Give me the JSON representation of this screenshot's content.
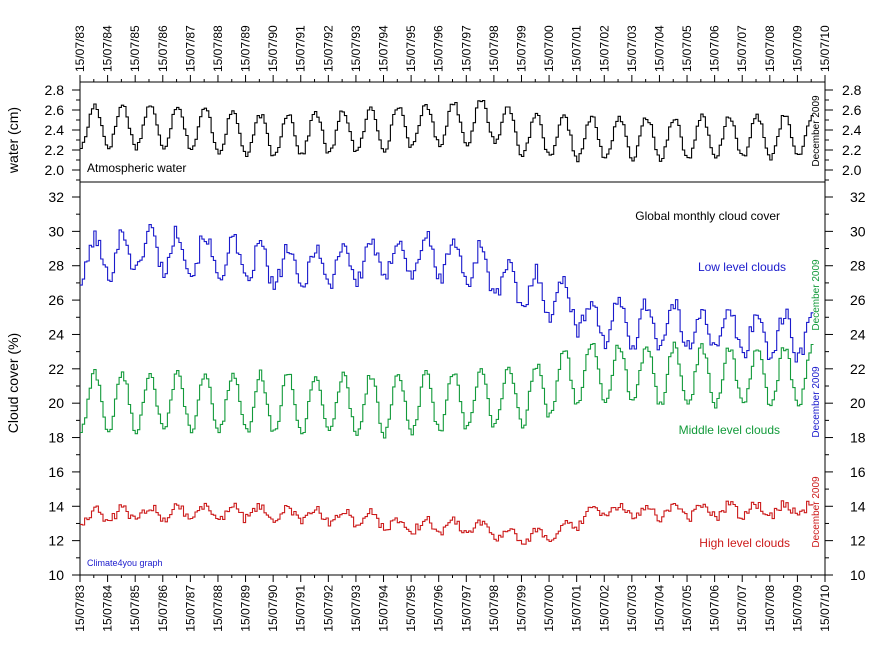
{
  "chart_data": {
    "type": "line",
    "x_range": [
      1983.5,
      2010.5
    ],
    "x_tick_labels": [
      "15/07/83",
      "15/07/84",
      "15/07/85",
      "15/07/86",
      "15/07/87",
      "15/07/88",
      "15/07/89",
      "15/07/90",
      "15/07/91",
      "15/07/92",
      "15/07/93",
      "15/07/94",
      "15/07/95",
      "15/07/96",
      "15/07/97",
      "15/07/98",
      "15/07/99",
      "15/07/00",
      "15/07/01",
      "15/07/02",
      "15/07/03",
      "15/07/04",
      "15/07/05",
      "15/07/06",
      "15/07/07",
      "15/07/08",
      "15/07/09",
      "15/07/10"
    ],
    "upper_panel": {
      "ylabel": "water (cm)",
      "ylim": [
        1.9,
        2.9
      ],
      "y_ticks": [
        "2.0",
        "2.2",
        "2.4",
        "2.6",
        "2.8"
      ],
      "label": "Atmospheric water",
      "end_note": "December 2009",
      "series": [
        {
          "name": "Atmospheric water",
          "color": "#000000",
          "base": 2.38,
          "amplitude": 0.21,
          "annual_anomaly": [
            [
              1983.5,
              0.06
            ],
            [
              1987,
              0.06
            ],
            [
              1990,
              -0.04
            ],
            [
              1991,
              -0.02
            ],
            [
              1993,
              0.0
            ],
            [
              1995,
              0.05
            ],
            [
              1997,
              0.09
            ],
            [
              1998.5,
              0.12
            ],
            [
              1999.5,
              -0.03
            ],
            [
              2001,
              -0.06
            ],
            [
              2005,
              -0.06
            ],
            [
              2010,
              -0.04
            ]
          ]
        }
      ]
    },
    "lower_panel": {
      "ylabel": "Cloud cover (%)",
      "ylim": [
        10,
        32
      ],
      "y_ticks": [
        "10",
        "12",
        "14",
        "16",
        "18",
        "20",
        "22",
        "24",
        "26",
        "28",
        "30",
        "32"
      ],
      "title": "Global monthly cloud cover",
      "credit": "Climate4you graph",
      "series": [
        {
          "name": "Low level clouds",
          "color": "#1a1acc",
          "base": 27.3,
          "amplitude": 1.2,
          "end_note": "December 2009",
          "annual_anomaly": [
            [
              1983.5,
              1.0
            ],
            [
              1986,
              1.7
            ],
            [
              1988,
              1.3
            ],
            [
              1991,
              0.5
            ],
            [
              1994,
              1.0
            ],
            [
              1996,
              1.3
            ],
            [
              1998,
              0.7
            ],
            [
              1999,
              -0.5
            ],
            [
              2001,
              -1.2
            ],
            [
              2002,
              -2.5
            ],
            [
              2005,
              -2.8
            ],
            [
              2008,
              -3.3
            ],
            [
              2010,
              -3.4
            ]
          ]
        },
        {
          "name": "Middle level clouds",
          "color": "#129a3a",
          "base": 20.3,
          "amplitude": 1.7,
          "end_note": "December 2009",
          "annual_anomaly": [
            [
              1983.5,
              -0.2
            ],
            [
              1995,
              -0.4
            ],
            [
              1998,
              -0.1
            ],
            [
              2000,
              0.2
            ],
            [
              2001,
              1.2
            ],
            [
              2002,
              1.5
            ],
            [
              2005,
              1.3
            ],
            [
              2010,
              1.2
            ]
          ]
        },
        {
          "name": "High level clouds",
          "color": "#cc1a1a",
          "base": 13.4,
          "amplitude": 0.35,
          "end_note": "December 2009",
          "annual_anomaly": [
            [
              1983.5,
              0.0
            ],
            [
              1987,
              0.3
            ],
            [
              1990,
              0.2
            ],
            [
              1994,
              -0.1
            ],
            [
              1995,
              -0.5
            ],
            [
              1998,
              -0.6
            ],
            [
              1999.5,
              -1.3
            ],
            [
              2001,
              -0.9
            ],
            [
              2002,
              0.3
            ],
            [
              2006,
              0.3
            ],
            [
              2010,
              0.5
            ]
          ]
        }
      ]
    }
  }
}
